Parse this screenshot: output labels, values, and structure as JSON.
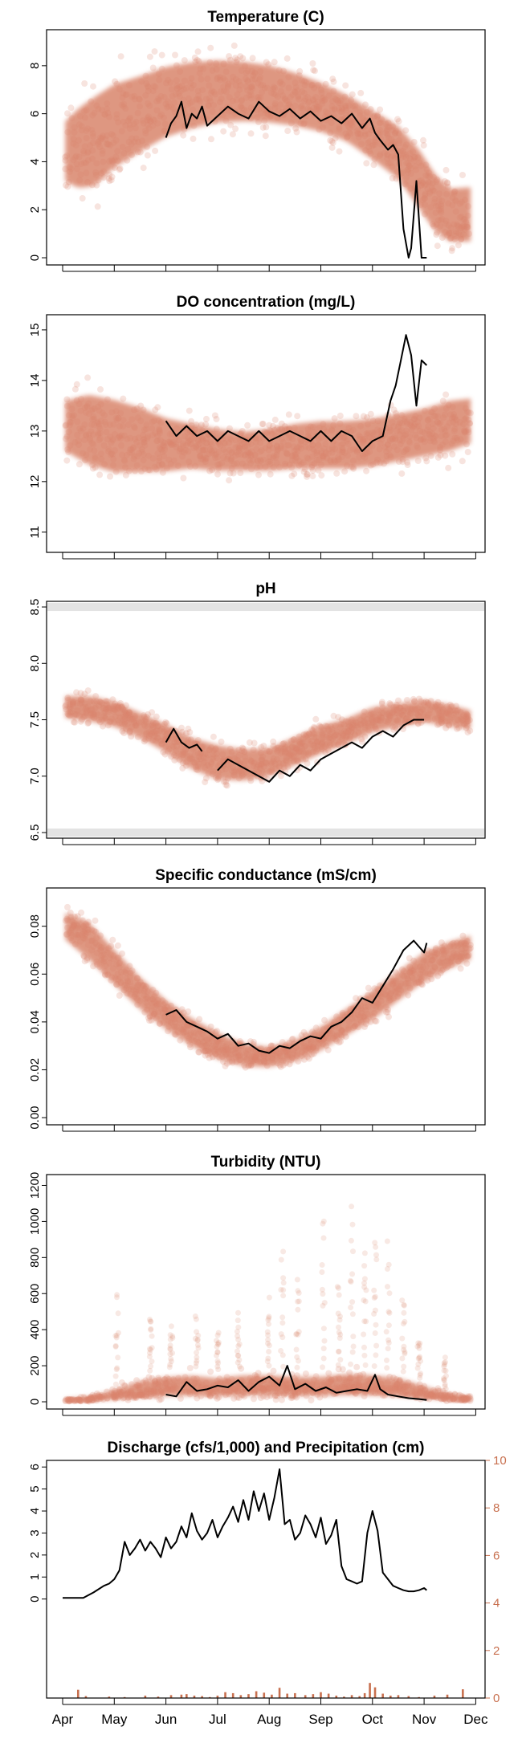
{
  "colors": {
    "cloud": "#d9856c",
    "line": "#000000",
    "precip": "#c8704f",
    "band": "#e3e3e3"
  },
  "months": [
    "Apr",
    "May",
    "Jun",
    "Jul",
    "Aug",
    "Sep",
    "Oct",
    "Nov",
    "Dec"
  ],
  "chart_data": [
    {
      "type": "scatter",
      "title": "Temperature (C)",
      "yticks": [
        0,
        2,
        4,
        6,
        8
      ],
      "ylim": [
        -0.3,
        9.5
      ],
      "x_unit": "month index (Apr=0)",
      "cloud_envelope": {
        "x": [
          0.05,
          0.3,
          0.6,
          1.0,
          1.5,
          2.0,
          2.5,
          3.0,
          3.5,
          4.0,
          4.5,
          5.0,
          5.5,
          6.0,
          6.5,
          6.9,
          7.2,
          7.5,
          7.9
        ],
        "low": [
          2.3,
          1.6,
          1.5,
          2.5,
          3.3,
          4.0,
          4.4,
          4.6,
          4.7,
          4.7,
          4.6,
          4.4,
          4.0,
          3.2,
          2.3,
          1.0,
          0.2,
          0.0,
          0.0
        ],
        "high": [
          6.8,
          7.6,
          8.2,
          8.8,
          9.0,
          9.3,
          9.4,
          9.3,
          9.2,
          9.0,
          8.6,
          8.1,
          7.5,
          6.9,
          6.3,
          5.4,
          4.5,
          4.0,
          4.1
        ],
        "center": [
          4.3,
          4.5,
          4.8,
          5.3,
          5.8,
          6.3,
          6.6,
          6.9,
          6.9,
          6.8,
          6.6,
          6.3,
          5.9,
          5.2,
          4.5,
          3.4,
          2.3,
          1.5,
          1.5
        ]
      },
      "series": [
        {
          "x": [
            2.0,
            2.1,
            2.2,
            2.3,
            2.4,
            2.5,
            2.6,
            2.7,
            2.8,
            3.0,
            3.2,
            3.4,
            3.6,
            3.8,
            4.0,
            4.2,
            4.4,
            4.6,
            4.8,
            5.0,
            5.2,
            5.4,
            5.6,
            5.8,
            5.95,
            6.05,
            6.15,
            6.3,
            6.4,
            6.5,
            6.6,
            6.7,
            6.75,
            6.85,
            6.95,
            7.05
          ],
          "y": [
            5.0,
            5.6,
            5.9,
            6.5,
            5.4,
            6.0,
            5.8,
            6.3,
            5.5,
            5.9,
            6.3,
            6.0,
            5.8,
            6.5,
            6.1,
            5.9,
            6.2,
            5.8,
            6.1,
            5.7,
            5.9,
            5.6,
            6.0,
            5.4,
            5.8,
            5.2,
            4.9,
            4.5,
            4.7,
            4.3,
            1.2,
            0.0,
            0.4,
            3.2,
            0.0,
            0.0
          ]
        }
      ]
    },
    {
      "type": "scatter",
      "title": "DO concentration (mg/L)",
      "yticks": [
        11,
        12,
        13,
        14,
        15
      ],
      "ylim": [
        10.6,
        15.3
      ],
      "cloud_envelope": {
        "x": [
          0.05,
          0.5,
          1.0,
          1.5,
          2.0,
          2.5,
          3.0,
          3.5,
          4.0,
          4.5,
          5.0,
          5.5,
          6.0,
          6.5,
          7.0,
          7.5,
          7.9
        ],
        "low": [
          12.2,
          11.8,
          11.6,
          11.7,
          11.8,
          11.9,
          11.9,
          11.9,
          11.9,
          11.9,
          11.9,
          11.9,
          11.9,
          12.0,
          12.1,
          12.2,
          12.4
        ],
        "high": [
          14.0,
          14.3,
          14.2,
          14.0,
          13.7,
          13.5,
          13.4,
          13.3,
          13.4,
          13.5,
          13.6,
          13.6,
          13.6,
          13.7,
          13.8,
          14.0,
          14.0
        ],
        "center": [
          13.1,
          13.0,
          12.9,
          12.8,
          12.7,
          12.7,
          12.6,
          12.6,
          12.6,
          12.7,
          12.7,
          12.7,
          12.8,
          12.9,
          13.0,
          13.1,
          13.2
        ]
      },
      "series": [
        {
          "x": [
            2.0,
            2.2,
            2.4,
            2.6,
            2.8,
            3.0,
            3.2,
            3.4,
            3.6,
            3.8,
            4.0,
            4.2,
            4.4,
            4.6,
            4.8,
            5.0,
            5.2,
            5.4,
            5.6,
            5.8,
            6.0,
            6.2,
            6.35,
            6.45,
            6.55,
            6.65,
            6.75,
            6.85,
            6.95,
            7.05
          ],
          "y": [
            13.2,
            12.9,
            13.1,
            12.9,
            13.0,
            12.8,
            13.0,
            12.9,
            12.8,
            13.0,
            12.8,
            12.9,
            13.0,
            12.9,
            12.8,
            13.0,
            12.8,
            13.0,
            12.9,
            12.6,
            12.8,
            12.9,
            13.6,
            13.9,
            14.4,
            14.9,
            14.5,
            13.5,
            14.4,
            14.3
          ]
        }
      ]
    },
    {
      "type": "scatter",
      "title": "pH",
      "yticks": [
        6.5,
        7.0,
        7.5,
        8.0,
        8.5
      ],
      "ylim": [
        6.45,
        8.55
      ],
      "bands": [
        6.5,
        8.5
      ],
      "cloud_envelope": {
        "x": [
          0.05,
          0.5,
          1.0,
          1.5,
          2.0,
          2.5,
          3.0,
          3.5,
          4.0,
          4.5,
          5.0,
          5.5,
          6.0,
          6.5,
          7.0,
          7.5,
          7.9
        ],
        "low": [
          7.45,
          7.4,
          7.35,
          7.25,
          7.1,
          6.95,
          6.85,
          6.85,
          6.9,
          7.0,
          7.1,
          7.2,
          7.3,
          7.35,
          7.4,
          7.35,
          7.35
        ],
        "high": [
          7.8,
          7.8,
          7.75,
          7.65,
          7.55,
          7.45,
          7.4,
          7.35,
          7.35,
          7.45,
          7.55,
          7.6,
          7.7,
          7.72,
          7.75,
          7.7,
          7.65
        ],
        "center": [
          7.6,
          7.6,
          7.55,
          7.45,
          7.35,
          7.2,
          7.12,
          7.1,
          7.12,
          7.22,
          7.32,
          7.4,
          7.5,
          7.55,
          7.58,
          7.55,
          7.5
        ]
      },
      "series": [
        {
          "x": [
            2.0,
            2.15,
            2.3,
            2.45,
            2.6,
            2.7
          ],
          "y": [
            7.3,
            7.42,
            7.3,
            7.25,
            7.28,
            7.22
          ]
        },
        {
          "x": [
            3.0,
            3.2,
            3.4,
            3.6,
            3.8,
            4.0,
            4.2,
            4.4,
            4.6,
            4.8,
            5.0,
            5.2,
            5.4,
            5.6,
            5.8,
            6.0,
            6.2,
            6.4,
            6.6,
            6.8,
            7.0
          ],
          "y": [
            7.05,
            7.15,
            7.1,
            7.05,
            7.0,
            6.95,
            7.05,
            7.0,
            7.1,
            7.05,
            7.15,
            7.2,
            7.25,
            7.3,
            7.25,
            7.35,
            7.4,
            7.35,
            7.45,
            7.5,
            7.5
          ]
        }
      ]
    },
    {
      "type": "scatter",
      "title": "Specific conductance (mS/cm)",
      "yticks": [
        0.0,
        0.02,
        0.04,
        0.06,
        0.08
      ],
      "ylim": [
        -0.003,
        0.096
      ],
      "cloud_envelope": {
        "x": [
          0.05,
          0.5,
          1.0,
          1.5,
          2.0,
          2.5,
          3.0,
          3.5,
          4.0,
          4.5,
          5.0,
          5.5,
          6.0,
          6.5,
          7.0,
          7.5,
          7.9
        ],
        "low": [
          0.07,
          0.06,
          0.05,
          0.04,
          0.032,
          0.025,
          0.02,
          0.018,
          0.018,
          0.02,
          0.024,
          0.03,
          0.036,
          0.044,
          0.052,
          0.058,
          0.062
        ],
        "high": [
          0.09,
          0.088,
          0.076,
          0.064,
          0.054,
          0.046,
          0.04,
          0.035,
          0.033,
          0.036,
          0.042,
          0.05,
          0.058,
          0.066,
          0.074,
          0.078,
          0.08
        ],
        "center": [
          0.08,
          0.074,
          0.063,
          0.052,
          0.043,
          0.036,
          0.03,
          0.026,
          0.025,
          0.028,
          0.033,
          0.04,
          0.047,
          0.055,
          0.063,
          0.068,
          0.071
        ]
      },
      "series": [
        {
          "x": [
            2.0,
            2.2,
            2.4,
            2.6,
            2.8,
            3.0,
            3.2,
            3.4,
            3.6,
            3.8,
            4.0,
            4.2,
            4.4,
            4.6,
            4.8,
            5.0,
            5.2,
            5.4,
            5.6,
            5.8,
            6.0,
            6.2,
            6.4,
            6.6,
            6.8,
            7.0,
            7.05
          ],
          "y": [
            0.043,
            0.045,
            0.04,
            0.038,
            0.036,
            0.033,
            0.035,
            0.03,
            0.031,
            0.028,
            0.027,
            0.03,
            0.029,
            0.032,
            0.034,
            0.033,
            0.038,
            0.04,
            0.044,
            0.05,
            0.048,
            0.055,
            0.062,
            0.07,
            0.074,
            0.069,
            0.073
          ]
        }
      ]
    },
    {
      "type": "scatter",
      "title": "Turbidity (NTU)",
      "yticks": [
        0,
        200,
        400,
        600,
        800,
        1000,
        1200
      ],
      "ylim": [
        -40,
        1260
      ],
      "cloud_envelope": {
        "x": [
          0.05,
          0.5,
          1.0,
          1.5,
          2.0,
          2.5,
          3.0,
          3.5,
          4.0,
          4.5,
          5.0,
          5.5,
          6.0,
          6.5,
          7.0,
          7.5,
          7.9
        ],
        "low": [
          0,
          0,
          0,
          0,
          0,
          0,
          0,
          0,
          0,
          0,
          0,
          0,
          0,
          0,
          0,
          0,
          0
        ],
        "high": [
          25,
          40,
          90,
          160,
          190,
          200,
          180,
          200,
          200,
          190,
          190,
          210,
          200,
          180,
          120,
          60,
          40
        ],
        "center": [
          8,
          12,
          30,
          55,
          70,
          75,
          70,
          80,
          80,
          75,
          75,
          85,
          80,
          70,
          45,
          20,
          12
        ]
      },
      "spikes": [
        [
          1.05,
          700
        ],
        [
          1.7,
          520
        ],
        [
          2.1,
          450
        ],
        [
          2.6,
          520
        ],
        [
          3.0,
          430
        ],
        [
          3.4,
          500
        ],
        [
          4.0,
          600
        ],
        [
          4.25,
          1050
        ],
        [
          4.55,
          800
        ],
        [
          5.05,
          1180
        ],
        [
          5.35,
          700
        ],
        [
          5.6,
          1200
        ],
        [
          5.85,
          1000
        ],
        [
          6.05,
          1100
        ],
        [
          6.3,
          900
        ],
        [
          6.6,
          650
        ],
        [
          6.9,
          400
        ],
        [
          7.4,
          300
        ]
      ],
      "series": [
        {
          "x": [
            2.0,
            2.2,
            2.4,
            2.6,
            2.8,
            3.0,
            3.2,
            3.4,
            3.6,
            3.8,
            4.0,
            4.2,
            4.35,
            4.5,
            4.7,
            4.9,
            5.1,
            5.3,
            5.5,
            5.7,
            5.9,
            6.05,
            6.15,
            6.3,
            6.5,
            6.7,
            6.9,
            7.05
          ],
          "y": [
            40,
            30,
            110,
            60,
            70,
            90,
            80,
            120,
            60,
            110,
            140,
            90,
            200,
            70,
            100,
            60,
            80,
            50,
            60,
            70,
            60,
            150,
            70,
            40,
            30,
            20,
            15,
            10
          ]
        }
      ]
    },
    {
      "type": "line",
      "title": "Discharge (cfs/1,000) and Precipitation (cm)",
      "yticks": [
        0,
        1,
        2,
        3,
        4,
        5,
        6
      ],
      "yticks_right": [
        0,
        2,
        4,
        6,
        8,
        10
      ],
      "ylim": [
        -4.5,
        6.3
      ],
      "ylim_right": [
        0,
        10
      ],
      "series": [
        {
          "x": [
            0.0,
            0.4,
            0.6,
            0.8,
            0.9,
            1.0,
            1.1,
            1.2,
            1.3,
            1.4,
            1.5,
            1.6,
            1.7,
            1.8,
            1.9,
            2.0,
            2.1,
            2.2,
            2.3,
            2.4,
            2.5,
            2.6,
            2.7,
            2.8,
            2.9,
            3.0,
            3.1,
            3.2,
            3.3,
            3.4,
            3.5,
            3.6,
            3.7,
            3.8,
            3.9,
            4.0,
            4.1,
            4.2,
            4.3,
            4.4,
            4.5,
            4.6,
            4.7,
            4.8,
            4.9,
            5.0,
            5.1,
            5.2,
            5.3,
            5.4,
            5.5,
            5.6,
            5.7,
            5.8,
            5.9,
            6.0,
            6.1,
            6.2,
            6.3,
            6.4,
            6.5,
            6.6,
            6.7,
            6.8,
            6.9,
            7.0,
            7.05
          ],
          "y": [
            0.05,
            0.05,
            0.3,
            0.6,
            0.7,
            0.9,
            1.3,
            2.6,
            2.0,
            2.3,
            2.7,
            2.2,
            2.6,
            2.3,
            1.9,
            2.8,
            2.3,
            2.6,
            3.3,
            2.8,
            3.9,
            3.1,
            2.7,
            3.0,
            3.6,
            2.8,
            3.3,
            3.7,
            4.2,
            3.5,
            4.5,
            3.6,
            4.9,
            4.0,
            4.8,
            3.6,
            4.6,
            5.9,
            3.4,
            3.6,
            2.7,
            3.0,
            3.8,
            3.4,
            2.8,
            3.7,
            2.5,
            2.9,
            3.6,
            1.5,
            0.9,
            0.8,
            0.7,
            0.8,
            3.0,
            4.0,
            3.1,
            1.2,
            0.9,
            0.6,
            0.5,
            0.4,
            0.35,
            0.35,
            0.4,
            0.5,
            0.4
          ]
        }
      ],
      "precip": {
        "x": [
          0.3,
          0.45,
          0.9,
          1.2,
          1.6,
          1.85,
          2.1,
          2.3,
          2.4,
          2.55,
          2.7,
          2.85,
          3.0,
          3.15,
          3.3,
          3.45,
          3.6,
          3.75,
          3.9,
          4.05,
          4.2,
          4.35,
          4.5,
          4.7,
          4.85,
          5.0,
          5.15,
          5.3,
          5.45,
          5.6,
          5.75,
          5.85,
          5.95,
          6.05,
          6.2,
          6.35,
          6.5,
          6.7,
          6.9,
          7.2,
          7.45,
          7.75
        ],
        "y": [
          1.7,
          0.4,
          0.3,
          0.2,
          0.5,
          0.3,
          0.6,
          0.7,
          0.8,
          0.5,
          0.4,
          0.2,
          0.5,
          1.2,
          1.0,
          0.6,
          0.8,
          1.4,
          1.1,
          0.7,
          2.1,
          0.9,
          1.0,
          0.6,
          0.8,
          1.2,
          0.9,
          0.5,
          0.3,
          0.6,
          0.4,
          1.0,
          3.1,
          2.2,
          0.9,
          0.5,
          0.6,
          0.4,
          0.2,
          0.5,
          0.7,
          1.8
        ]
      }
    }
  ]
}
